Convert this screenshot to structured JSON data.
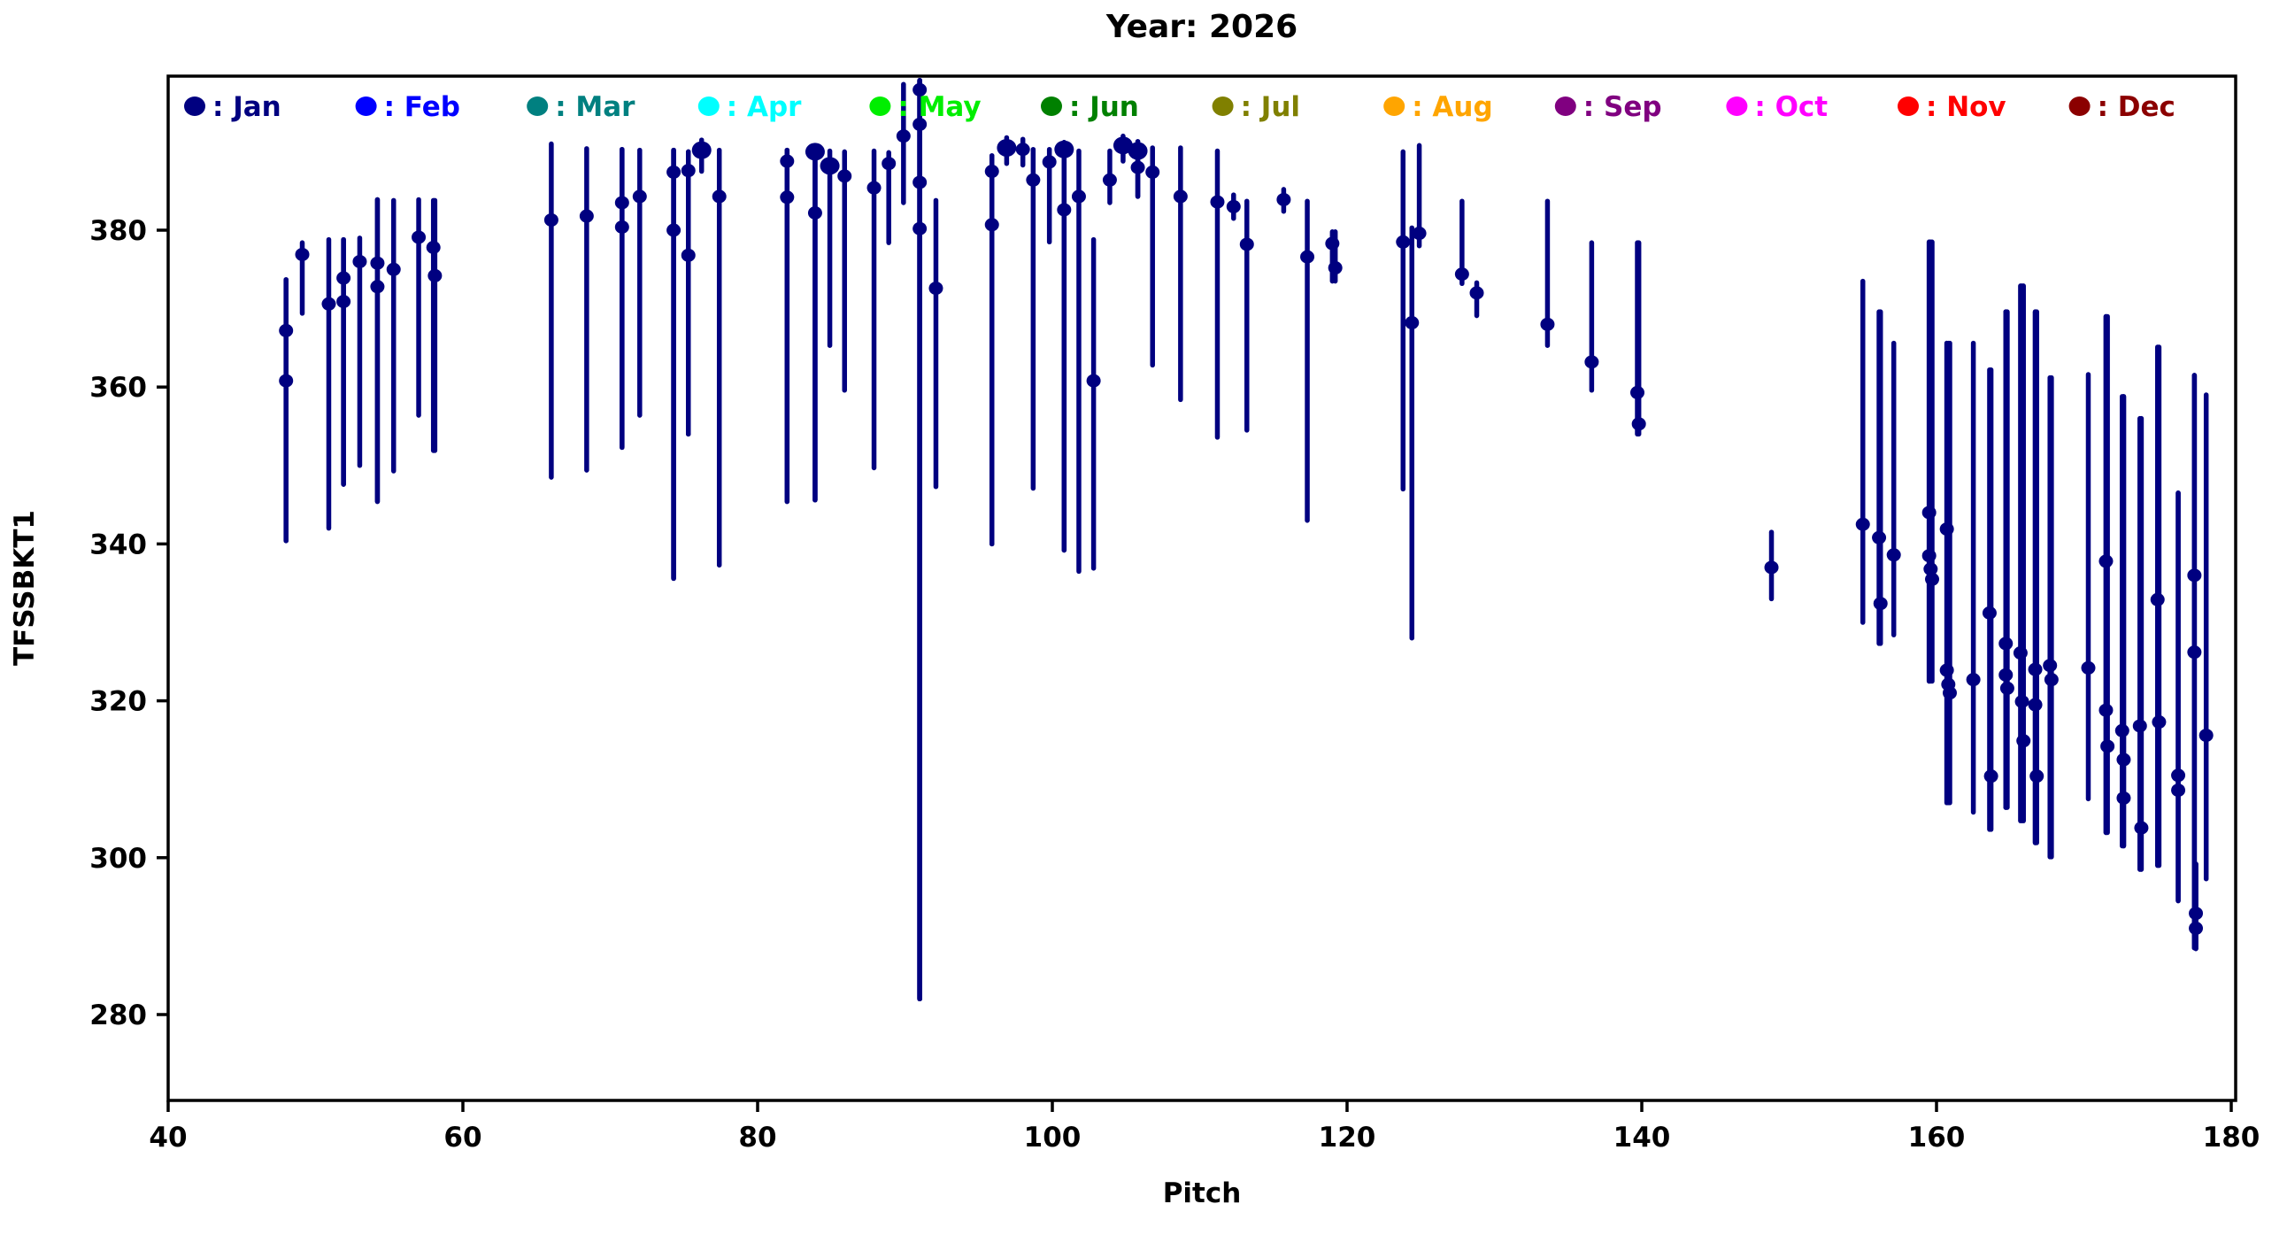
{
  "title": "Year: 2026",
  "axes": {
    "xlabel": "Pitch",
    "ylabel": "TFSSBKT1"
  },
  "legend": {
    "entries": [
      {
        "label": "Jan",
        "color": "#000080"
      },
      {
        "label": "Feb",
        "color": "#0000ff"
      },
      {
        "label": "Mar",
        "color": "#008080"
      },
      {
        "label": "Apr",
        "color": "#00ffff"
      },
      {
        "label": "May",
        "color": "#00ee00"
      },
      {
        "label": "Jun",
        "color": "#008000"
      },
      {
        "label": "Jul",
        "color": "#808000"
      },
      {
        "label": "Aug",
        "color": "#ffa500"
      },
      {
        "label": "Sep",
        "color": "#800080"
      },
      {
        "label": "Oct",
        "color": "#ff00ff"
      },
      {
        "label": "Nov",
        "color": "#ff0000"
      },
      {
        "label": "Dec",
        "color": "#8b0000"
      }
    ]
  },
  "chart_data": {
    "type": "scatter",
    "title": "Year: 2026",
    "xlabel": "Pitch",
    "ylabel": "TFSSBKT1",
    "xlim": [
      40,
      180.3
    ],
    "ylim": [
      266,
      400
    ],
    "x_ticks": [
      40,
      60,
      80,
      100,
      120,
      140,
      160,
      180
    ],
    "y_ticks": [
      280,
      300,
      320,
      340,
      360,
      380
    ],
    "grid": false,
    "legend_position": "top-inside-row",
    "point_color": "#000080",
    "points_month": "Jan",
    "points_format": "[pitch, value, errorbar_low, errorbar_high, big_marker]",
    "points": [
      [
        48.0,
        367.2,
        340.4,
        373.7,
        0
      ],
      [
        48.0,
        360.8,
        340.4,
        373.7,
        0
      ],
      [
        49.1,
        376.9,
        369.4,
        378.4,
        0
      ],
      [
        50.9,
        370.6,
        342.0,
        378.8,
        0
      ],
      [
        51.9,
        373.9,
        347.6,
        378.8,
        0
      ],
      [
        51.9,
        370.9,
        347.6,
        378.8,
        0
      ],
      [
        53.0,
        376.0,
        350.0,
        379.0,
        0
      ],
      [
        54.2,
        375.8,
        345.4,
        383.9,
        0
      ],
      [
        54.2,
        372.8,
        345.4,
        383.9,
        0
      ],
      [
        55.3,
        375.0,
        349.3,
        383.8,
        0
      ],
      [
        57.0,
        379.1,
        356.4,
        383.9,
        0
      ],
      [
        58.0,
        377.8,
        351.9,
        383.8,
        0
      ],
      [
        58.1,
        374.2,
        351.9,
        383.8,
        0
      ],
      [
        66.0,
        381.3,
        348.5,
        391.0,
        0
      ],
      [
        68.4,
        381.8,
        349.4,
        390.4,
        0
      ],
      [
        70.8,
        383.5,
        352.3,
        390.3,
        0
      ],
      [
        70.8,
        380.4,
        352.3,
        390.3,
        0
      ],
      [
        72.0,
        384.3,
        356.4,
        390.2,
        0
      ],
      [
        74.3,
        387.4,
        335.6,
        390.2,
        0
      ],
      [
        74.3,
        380.0,
        335.6,
        390.2,
        0
      ],
      [
        75.3,
        387.6,
        354.0,
        390.0,
        0
      ],
      [
        75.3,
        376.8,
        354.0,
        390.0,
        0
      ],
      [
        76.2,
        390.2,
        387.5,
        391.5,
        1
      ],
      [
        77.4,
        384.3,
        337.3,
        390.2,
        0
      ],
      [
        82.0,
        388.8,
        345.4,
        390.2,
        0
      ],
      [
        82.0,
        384.2,
        345.4,
        390.2,
        0
      ],
      [
        83.9,
        390.0,
        345.6,
        390.5,
        1
      ],
      [
        83.9,
        382.2,
        345.6,
        390.5,
        0
      ],
      [
        84.9,
        388.2,
        365.3,
        390.1,
        1
      ],
      [
        85.9,
        386.9,
        359.6,
        390.0,
        0
      ],
      [
        87.9,
        385.4,
        349.7,
        390.1,
        0
      ],
      [
        88.9,
        388.5,
        378.4,
        389.9,
        0
      ],
      [
        89.9,
        392.0,
        383.5,
        398.6,
        0
      ],
      [
        91.0,
        397.9,
        282.0,
        399.1,
        0
      ],
      [
        91.0,
        393.5,
        282.0,
        399.1,
        0
      ],
      [
        91.0,
        386.1,
        282.0,
        399.1,
        0
      ],
      [
        91.0,
        380.2,
        282.0,
        399.1,
        0
      ],
      [
        92.1,
        372.6,
        347.3,
        383.8,
        0
      ],
      [
        95.9,
        387.5,
        340.0,
        389.5,
        0
      ],
      [
        95.9,
        380.7,
        340.0,
        389.5,
        0
      ],
      [
        96.9,
        390.5,
        388.5,
        391.8,
        1
      ],
      [
        98.0,
        390.3,
        388.3,
        391.6,
        0
      ],
      [
        98.7,
        386.4,
        347.1,
        390.3,
        0
      ],
      [
        99.8,
        388.7,
        378.5,
        390.3,
        0
      ],
      [
        100.8,
        390.3,
        339.2,
        391.2,
        1
      ],
      [
        100.8,
        382.6,
        339.2,
        391.2,
        0
      ],
      [
        101.8,
        384.3,
        336.5,
        390.1,
        0
      ],
      [
        102.8,
        360.8,
        336.9,
        378.8,
        0
      ],
      [
        103.9,
        386.4,
        383.5,
        390.1,
        0
      ],
      [
        104.8,
        390.8,
        388.8,
        392.0,
        1
      ],
      [
        105.8,
        390.1,
        384.3,
        391.3,
        1
      ],
      [
        105.8,
        388.0,
        384.3,
        391.3,
        0
      ],
      [
        106.8,
        387.4,
        362.8,
        390.5,
        0
      ],
      [
        108.7,
        384.3,
        358.4,
        390.5,
        0
      ],
      [
        111.2,
        383.6,
        353.6,
        390.1,
        0
      ],
      [
        112.3,
        383.0,
        381.5,
        384.5,
        0
      ],
      [
        113.2,
        378.2,
        354.5,
        383.7,
        0
      ],
      [
        115.7,
        383.9,
        382.4,
        385.2,
        0
      ],
      [
        117.3,
        376.6,
        343.0,
        383.7,
        0
      ],
      [
        119.0,
        378.3,
        373.5,
        379.8,
        0
      ],
      [
        119.2,
        375.2,
        373.5,
        379.8,
        0
      ],
      [
        123.8,
        378.5,
        347.0,
        390.0,
        0
      ],
      [
        124.4,
        368.2,
        328.0,
        380.3,
        0
      ],
      [
        124.9,
        379.6,
        378.0,
        390.8,
        0
      ],
      [
        127.8,
        374.4,
        373.2,
        383.7,
        0
      ],
      [
        128.8,
        372.0,
        369.1,
        373.3,
        0
      ],
      [
        133.6,
        368.0,
        365.3,
        383.7,
        0
      ],
      [
        136.6,
        363.2,
        359.6,
        378.4,
        0
      ],
      [
        139.7,
        359.3,
        354.0,
        378.4,
        0
      ],
      [
        139.8,
        355.3,
        354.0,
        378.4,
        0
      ],
      [
        148.8,
        337.0,
        333.0,
        341.5,
        0
      ],
      [
        155.0,
        342.5,
        330.0,
        373.5,
        0
      ],
      [
        156.1,
        340.8,
        327.3,
        369.6,
        0
      ],
      [
        156.2,
        332.4,
        327.3,
        369.6,
        0
      ],
      [
        157.1,
        338.6,
        328.4,
        365.6,
        0
      ],
      [
        159.5,
        344.0,
        322.5,
        378.5,
        0
      ],
      [
        159.5,
        338.5,
        322.5,
        378.5,
        0
      ],
      [
        159.6,
        336.8,
        322.5,
        378.5,
        0
      ],
      [
        159.7,
        335.5,
        322.5,
        378.5,
        0
      ],
      [
        160.7,
        341.9,
        307.0,
        365.6,
        0
      ],
      [
        160.7,
        323.9,
        307.0,
        365.6,
        0
      ],
      [
        160.8,
        322.1,
        307.0,
        365.6,
        0
      ],
      [
        160.9,
        321.0,
        307.0,
        365.6,
        0
      ],
      [
        162.5,
        322.7,
        305.8,
        365.6,
        0
      ],
      [
        163.6,
        331.2,
        303.6,
        362.2,
        0
      ],
      [
        163.7,
        310.4,
        303.6,
        362.2,
        0
      ],
      [
        164.7,
        327.3,
        306.4,
        369.6,
        0
      ],
      [
        164.7,
        323.3,
        306.4,
        369.6,
        0
      ],
      [
        164.8,
        321.6,
        306.4,
        369.6,
        0
      ],
      [
        165.7,
        326.1,
        304.7,
        372.9,
        0
      ],
      [
        165.8,
        319.9,
        304.7,
        372.9,
        0
      ],
      [
        165.9,
        314.9,
        304.7,
        372.9,
        0
      ],
      [
        166.7,
        324.0,
        301.9,
        369.6,
        0
      ],
      [
        166.7,
        319.5,
        301.9,
        369.6,
        0
      ],
      [
        166.8,
        310.4,
        301.9,
        369.6,
        0
      ],
      [
        167.7,
        324.5,
        300.1,
        361.2,
        0
      ],
      [
        167.8,
        322.7,
        300.1,
        361.2,
        0
      ],
      [
        170.3,
        324.2,
        307.5,
        361.6,
        0
      ],
      [
        171.5,
        337.8,
        303.2,
        369.0,
        0
      ],
      [
        171.5,
        318.8,
        303.2,
        369.0,
        0
      ],
      [
        171.6,
        314.2,
        303.2,
        369.0,
        0
      ],
      [
        172.6,
        316.2,
        301.5,
        358.8,
        0
      ],
      [
        172.7,
        312.5,
        301.5,
        358.8,
        0
      ],
      [
        172.7,
        307.6,
        301.5,
        358.8,
        0
      ],
      [
        173.8,
        316.8,
        298.5,
        356.0,
        0
      ],
      [
        173.9,
        303.8,
        298.5,
        356.0,
        0
      ],
      [
        175.0,
        332.9,
        299.0,
        365.1,
        0
      ],
      [
        175.1,
        317.3,
        299.0,
        365.1,
        0
      ],
      [
        176.4,
        310.5,
        294.5,
        346.5,
        0
      ],
      [
        176.4,
        308.6,
        294.5,
        346.5,
        0
      ],
      [
        177.5,
        336.0,
        288.5,
        361.5,
        0
      ],
      [
        177.5,
        326.2,
        288.5,
        361.5,
        0
      ],
      [
        177.6,
        292.9,
        288.4,
        299.2,
        0
      ],
      [
        177.6,
        291.0,
        288.4,
        299.2,
        0
      ],
      [
        178.3,
        315.6,
        297.3,
        359.0,
        0
      ]
    ]
  }
}
